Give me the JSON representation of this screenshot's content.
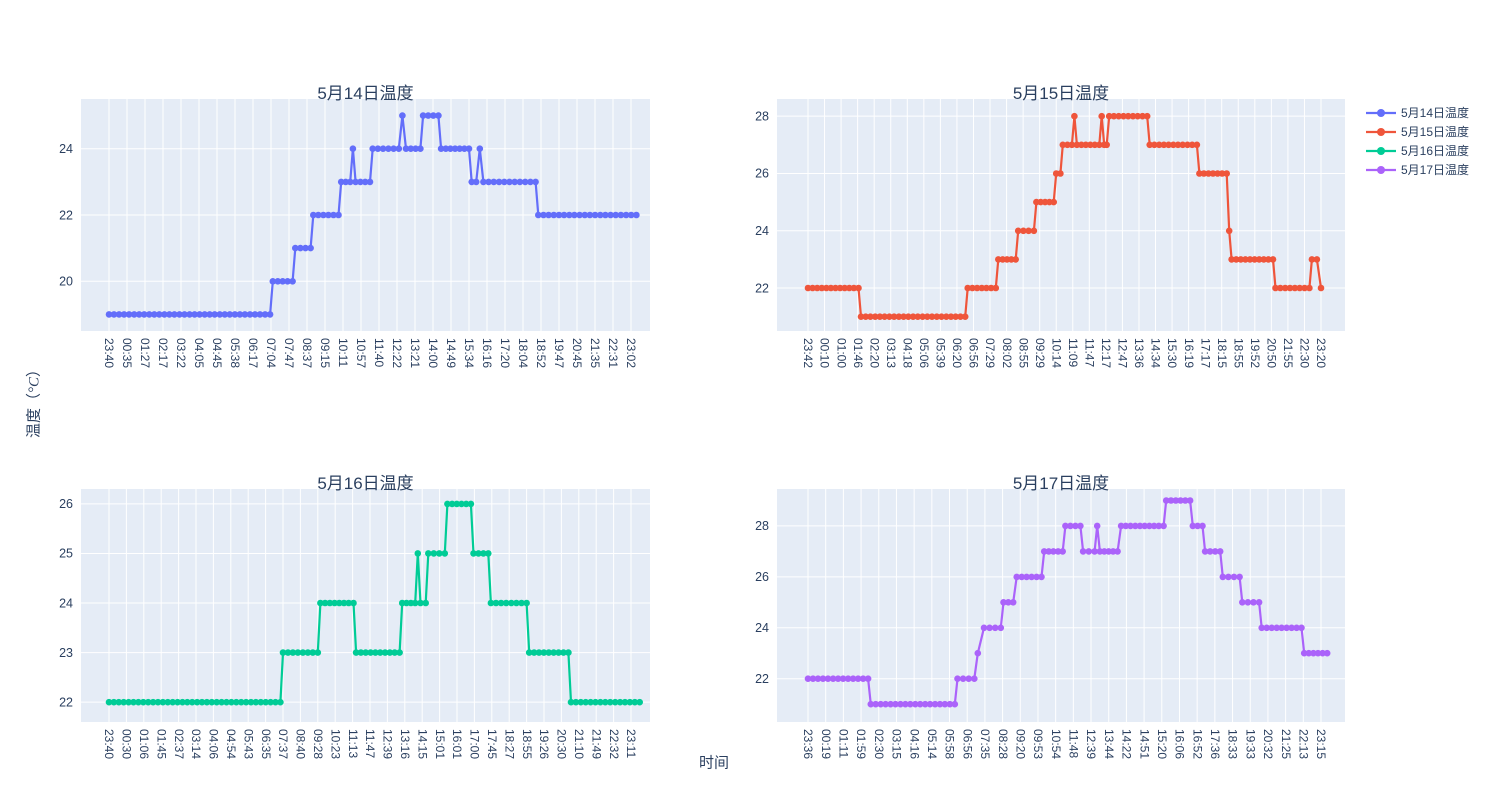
{
  "figure": {
    "page_bg": "#ffffff",
    "plot_bg": "#e5ecf6",
    "grid_color": "#ffffff",
    "text_color": "#2a3f5f",
    "x_axis_title": "时间",
    "y_axis_title": {
      "prefix": "温度（",
      "unit": "°C",
      "suffix": "）",
      "full": "温度（°C）"
    }
  },
  "legend": {
    "position": "top-right",
    "items": [
      {
        "label": "5月14日温度",
        "color": "#636efa"
      },
      {
        "label": "5月15日温度",
        "color": "#ef553b"
      },
      {
        "label": "5月16日温度",
        "color": "#00cc96"
      },
      {
        "label": "5月17日温度",
        "color": "#ab63fa"
      }
    ]
  },
  "chart_data": [
    {
      "type": "line",
      "mode": "lines+markers",
      "title": "5月14日温度",
      "series_name": "5月14日温度",
      "color": "#636efa",
      "xlabel": "时间",
      "ylabel": "温度（°C）",
      "grid": true,
      "x_ticks": [
        "23:40",
        "00:35",
        "01:27",
        "02:17",
        "03:22",
        "04:05",
        "04:45",
        "05:38",
        "06:17",
        "07:04",
        "07:47",
        "08:37",
        "09:15",
        "10:11",
        "10:57",
        "11:40",
        "12:22",
        "13:21",
        "14:00",
        "14:49",
        "15:34",
        "16:16",
        "17:20",
        "18:04",
        "18:52",
        "19:47",
        "20:45",
        "21:35",
        "22:31",
        "23:02"
      ],
      "y_ticks": [
        20,
        22,
        24
      ],
      "ylim": [
        18.5,
        25.5
      ],
      "segments_note": "[temperature_C, from_tick_index, to_tick_index] step plateaus of the sampled curve",
      "segments": [
        [
          19,
          0,
          8.95
        ],
        [
          20,
          9.1,
          10.2
        ],
        [
          21,
          10.35,
          11.2
        ],
        [
          22,
          11.35,
          12.75
        ],
        [
          23,
          12.9,
          13.4
        ],
        [
          24,
          13.55,
          13.55
        ],
        [
          23,
          13.7,
          14.5
        ],
        [
          24,
          14.65,
          16.1
        ],
        [
          25,
          16.3,
          16.3
        ],
        [
          24,
          16.5,
          17.3
        ],
        [
          25,
          17.45,
          18.3
        ],
        [
          24,
          18.45,
          20.0
        ],
        [
          23,
          20.15,
          20.4
        ],
        [
          24,
          20.6,
          20.6
        ],
        [
          23,
          20.8,
          23.7
        ],
        [
          22,
          23.85,
          29.3
        ]
      ]
    },
    {
      "type": "line",
      "mode": "lines+markers",
      "title": "5月15日温度",
      "series_name": "5月15日温度",
      "color": "#ef553b",
      "xlabel": "时间",
      "ylabel": "温度（°C）",
      "grid": true,
      "x_ticks": [
        "23:42",
        "00:10",
        "01:00",
        "01:46",
        "02:20",
        "03:13",
        "04:18",
        "05:06",
        "05:39",
        "06:20",
        "06:56",
        "07:29",
        "08:02",
        "08:55",
        "09:29",
        "10:14",
        "11:09",
        "11:47",
        "12:17",
        "12:47",
        "13:36",
        "14:34",
        "15:30",
        "16:19",
        "17:17",
        "18:15",
        "18:55",
        "19:52",
        "20:50",
        "21:55",
        "22:30",
        "23:20"
      ],
      "y_ticks": [
        22,
        24,
        26,
        28
      ],
      "ylim": [
        20.5,
        28.6
      ],
      "segments_note": "[temperature_C, from_tick_index, to_tick_index] step plateaus of the sampled curve",
      "segments": [
        [
          22,
          0,
          3.05
        ],
        [
          21,
          3.2,
          9.5
        ],
        [
          22,
          9.65,
          11.35
        ],
        [
          23,
          11.5,
          12.55
        ],
        [
          24,
          12.7,
          13.65
        ],
        [
          25,
          13.8,
          14.85
        ],
        [
          26,
          15.0,
          15.25
        ],
        [
          27,
          15.4,
          15.95
        ],
        [
          28,
          16.1,
          16.1
        ],
        [
          27,
          16.25,
          17.6
        ],
        [
          28,
          17.75,
          17.75
        ],
        [
          27,
          17.9,
          18.05
        ],
        [
          28,
          18.2,
          20.5
        ],
        [
          27,
          20.65,
          23.5
        ],
        [
          26,
          23.65,
          25.3
        ],
        [
          24,
          25.45,
          25.45
        ],
        [
          23,
          25.6,
          28.1
        ],
        [
          22,
          28.25,
          30.3
        ],
        [
          23,
          30.45,
          30.75
        ],
        [
          22,
          31,
          31
        ]
      ]
    },
    {
      "type": "line",
      "mode": "lines+markers",
      "title": "5月16日温度",
      "series_name": "5月16日温度",
      "color": "#00cc96",
      "xlabel": "时间",
      "ylabel": "温度（°C）",
      "grid": true,
      "x_ticks": [
        "23:40",
        "00:30",
        "01:06",
        "01:45",
        "02:37",
        "03:14",
        "04:06",
        "04:54",
        "05:43",
        "06:35",
        "07:37",
        "08:40",
        "09:28",
        "10:23",
        "11:13",
        "11:47",
        "12:39",
        "13:16",
        "14:15",
        "15:01",
        "16:01",
        "17:00",
        "17:45",
        "18:27",
        "18:55",
        "19:26",
        "20:30",
        "21:10",
        "21:49",
        "22:32",
        "23:11"
      ],
      "y_ticks": [
        22,
        23,
        24,
        25,
        26
      ],
      "ylim": [
        21.6,
        26.3
      ],
      "segments_note": "[temperature_C, from_tick_index, to_tick_index] step plateaus of the sampled curve",
      "segments": [
        [
          22,
          0,
          9.85
        ],
        [
          23,
          10.0,
          12.0
        ],
        [
          24,
          12.15,
          14.05
        ],
        [
          23,
          14.2,
          16.7
        ],
        [
          24,
          16.85,
          17.6
        ],
        [
          25,
          17.75,
          17.75
        ],
        [
          24,
          17.9,
          18.2
        ],
        [
          25,
          18.35,
          19.3
        ],
        [
          26,
          19.45,
          20.8
        ],
        [
          25,
          20.95,
          21.8
        ],
        [
          24,
          21.95,
          24.0
        ],
        [
          23,
          24.15,
          26.4
        ],
        [
          22,
          26.55,
          30.5
        ]
      ]
    },
    {
      "type": "line",
      "mode": "lines+markers",
      "title": "5月17日温度",
      "series_name": "5月17日温度",
      "color": "#ab63fa",
      "xlabel": "时间",
      "ylabel": "温度（°C）",
      "grid": true,
      "x_ticks": [
        "23:36",
        "00:19",
        "01:11",
        "01:59",
        "02:30",
        "03:15",
        "04:16",
        "05:14",
        "05:58",
        "06:56",
        "07:35",
        "08:28",
        "09:20",
        "09:53",
        "10:54",
        "11:48",
        "12:39",
        "13:44",
        "14:22",
        "14:51",
        "15:20",
        "16:06",
        "16:52",
        "17:36",
        "18:33",
        "19:33",
        "20:32",
        "21:25",
        "22:13",
        "23:15"
      ],
      "y_ticks": [
        22,
        24,
        26,
        28
      ],
      "ylim": [
        20.3,
        29.45
      ],
      "segments_note": "[temperature_C, from_tick_index, to_tick_index] step plateaus of the sampled curve",
      "segments": [
        [
          22,
          0,
          3.4
        ],
        [
          21,
          3.55,
          8.3
        ],
        [
          22,
          8.45,
          9.4
        ],
        [
          23,
          9.6,
          9.6
        ],
        [
          24,
          9.95,
          10.9
        ],
        [
          25,
          11.05,
          11.6
        ],
        [
          26,
          11.8,
          13.2
        ],
        [
          27,
          13.35,
          14.4
        ],
        [
          28,
          14.55,
          15.4
        ],
        [
          27,
          15.55,
          16.2
        ],
        [
          28,
          16.35,
          16.35
        ],
        [
          27,
          16.5,
          17.5
        ],
        [
          28,
          17.7,
          20.1
        ],
        [
          29,
          20.25,
          21.6
        ],
        [
          28,
          21.75,
          22.3
        ],
        [
          27,
          22.45,
          23.3
        ],
        [
          26,
          23.45,
          24.4
        ],
        [
          25,
          24.55,
          25.5
        ],
        [
          24,
          25.65,
          27.9
        ],
        [
          23,
          28.05,
          29.35
        ]
      ]
    }
  ]
}
